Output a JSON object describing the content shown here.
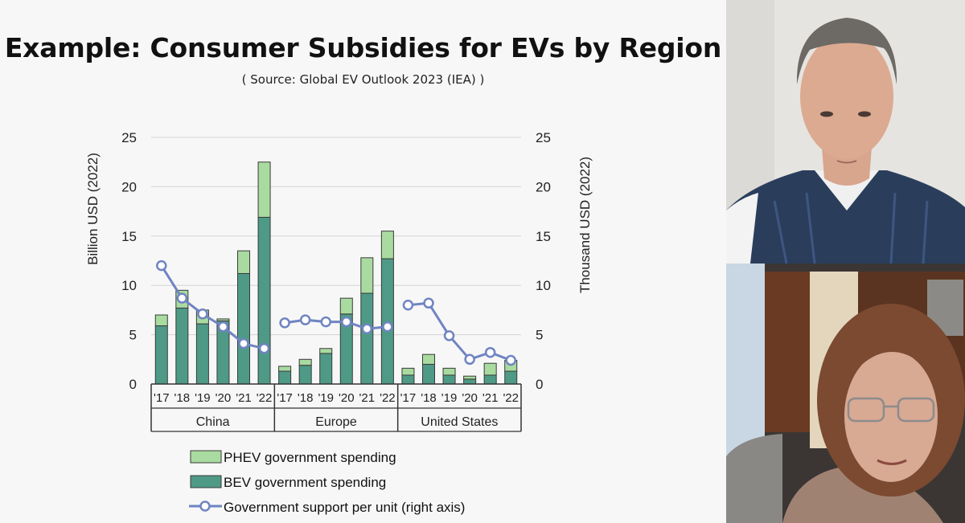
{
  "slide": {
    "title": "Example: Consumer Subsidies for EVs by Region",
    "subtitle": "Source: Global EV Outlook 2023 (IEA)"
  },
  "chart_data": {
    "type": "bar",
    "stacked": true,
    "left_axis_label": "Billion USD (2022)",
    "right_axis_label": "Thousand USD (2022)",
    "ylim": [
      0,
      25
    ],
    "y2lim": [
      0,
      25
    ],
    "yticks": [
      "0",
      "5",
      "10",
      "15",
      "20",
      "25"
    ],
    "groups": [
      {
        "name": "China",
        "years": [
          "'17",
          "'18",
          "'19",
          "'20",
          "'21",
          "'22"
        ]
      },
      {
        "name": "Europe",
        "years": [
          "'17",
          "'18",
          "'19",
          "'20",
          "'21",
          "'22"
        ]
      },
      {
        "name": "United States",
        "years": [
          "'17",
          "'18",
          "'19",
          "'20",
          "'21",
          "'22"
        ]
      }
    ],
    "series": [
      {
        "name": "BEV government spending",
        "kind": "bar",
        "color": "#4e9a87",
        "values": [
          5.9,
          7.7,
          6.1,
          6.4,
          11.2,
          16.9,
          1.3,
          1.9,
          3.1,
          7.1,
          9.2,
          12.7,
          0.9,
          2.0,
          0.9,
          0.5,
          0.9,
          1.3
        ]
      },
      {
        "name": "PHEV government spending",
        "kind": "bar",
        "color": "#a9dba0",
        "values": [
          1.1,
          1.8,
          1.4,
          0.2,
          2.3,
          5.6,
          0.5,
          0.6,
          0.5,
          1.6,
          3.6,
          2.8,
          0.7,
          1.0,
          0.7,
          0.3,
          1.2,
          1.1
        ]
      },
      {
        "name": "Government support per unit (right axis)",
        "kind": "line",
        "color": "#6f84c2",
        "values": [
          12.0,
          8.7,
          7.1,
          5.8,
          4.1,
          3.6,
          6.2,
          6.5,
          6.3,
          6.3,
          5.6,
          5.8,
          8.0,
          8.2,
          4.9,
          2.5,
          3.2,
          2.4
        ]
      }
    ],
    "legend_position": "bottom-left",
    "grid": "horizontal"
  },
  "participants": [
    {
      "role": "speaker-top"
    },
    {
      "role": "speaker-bottom"
    }
  ]
}
